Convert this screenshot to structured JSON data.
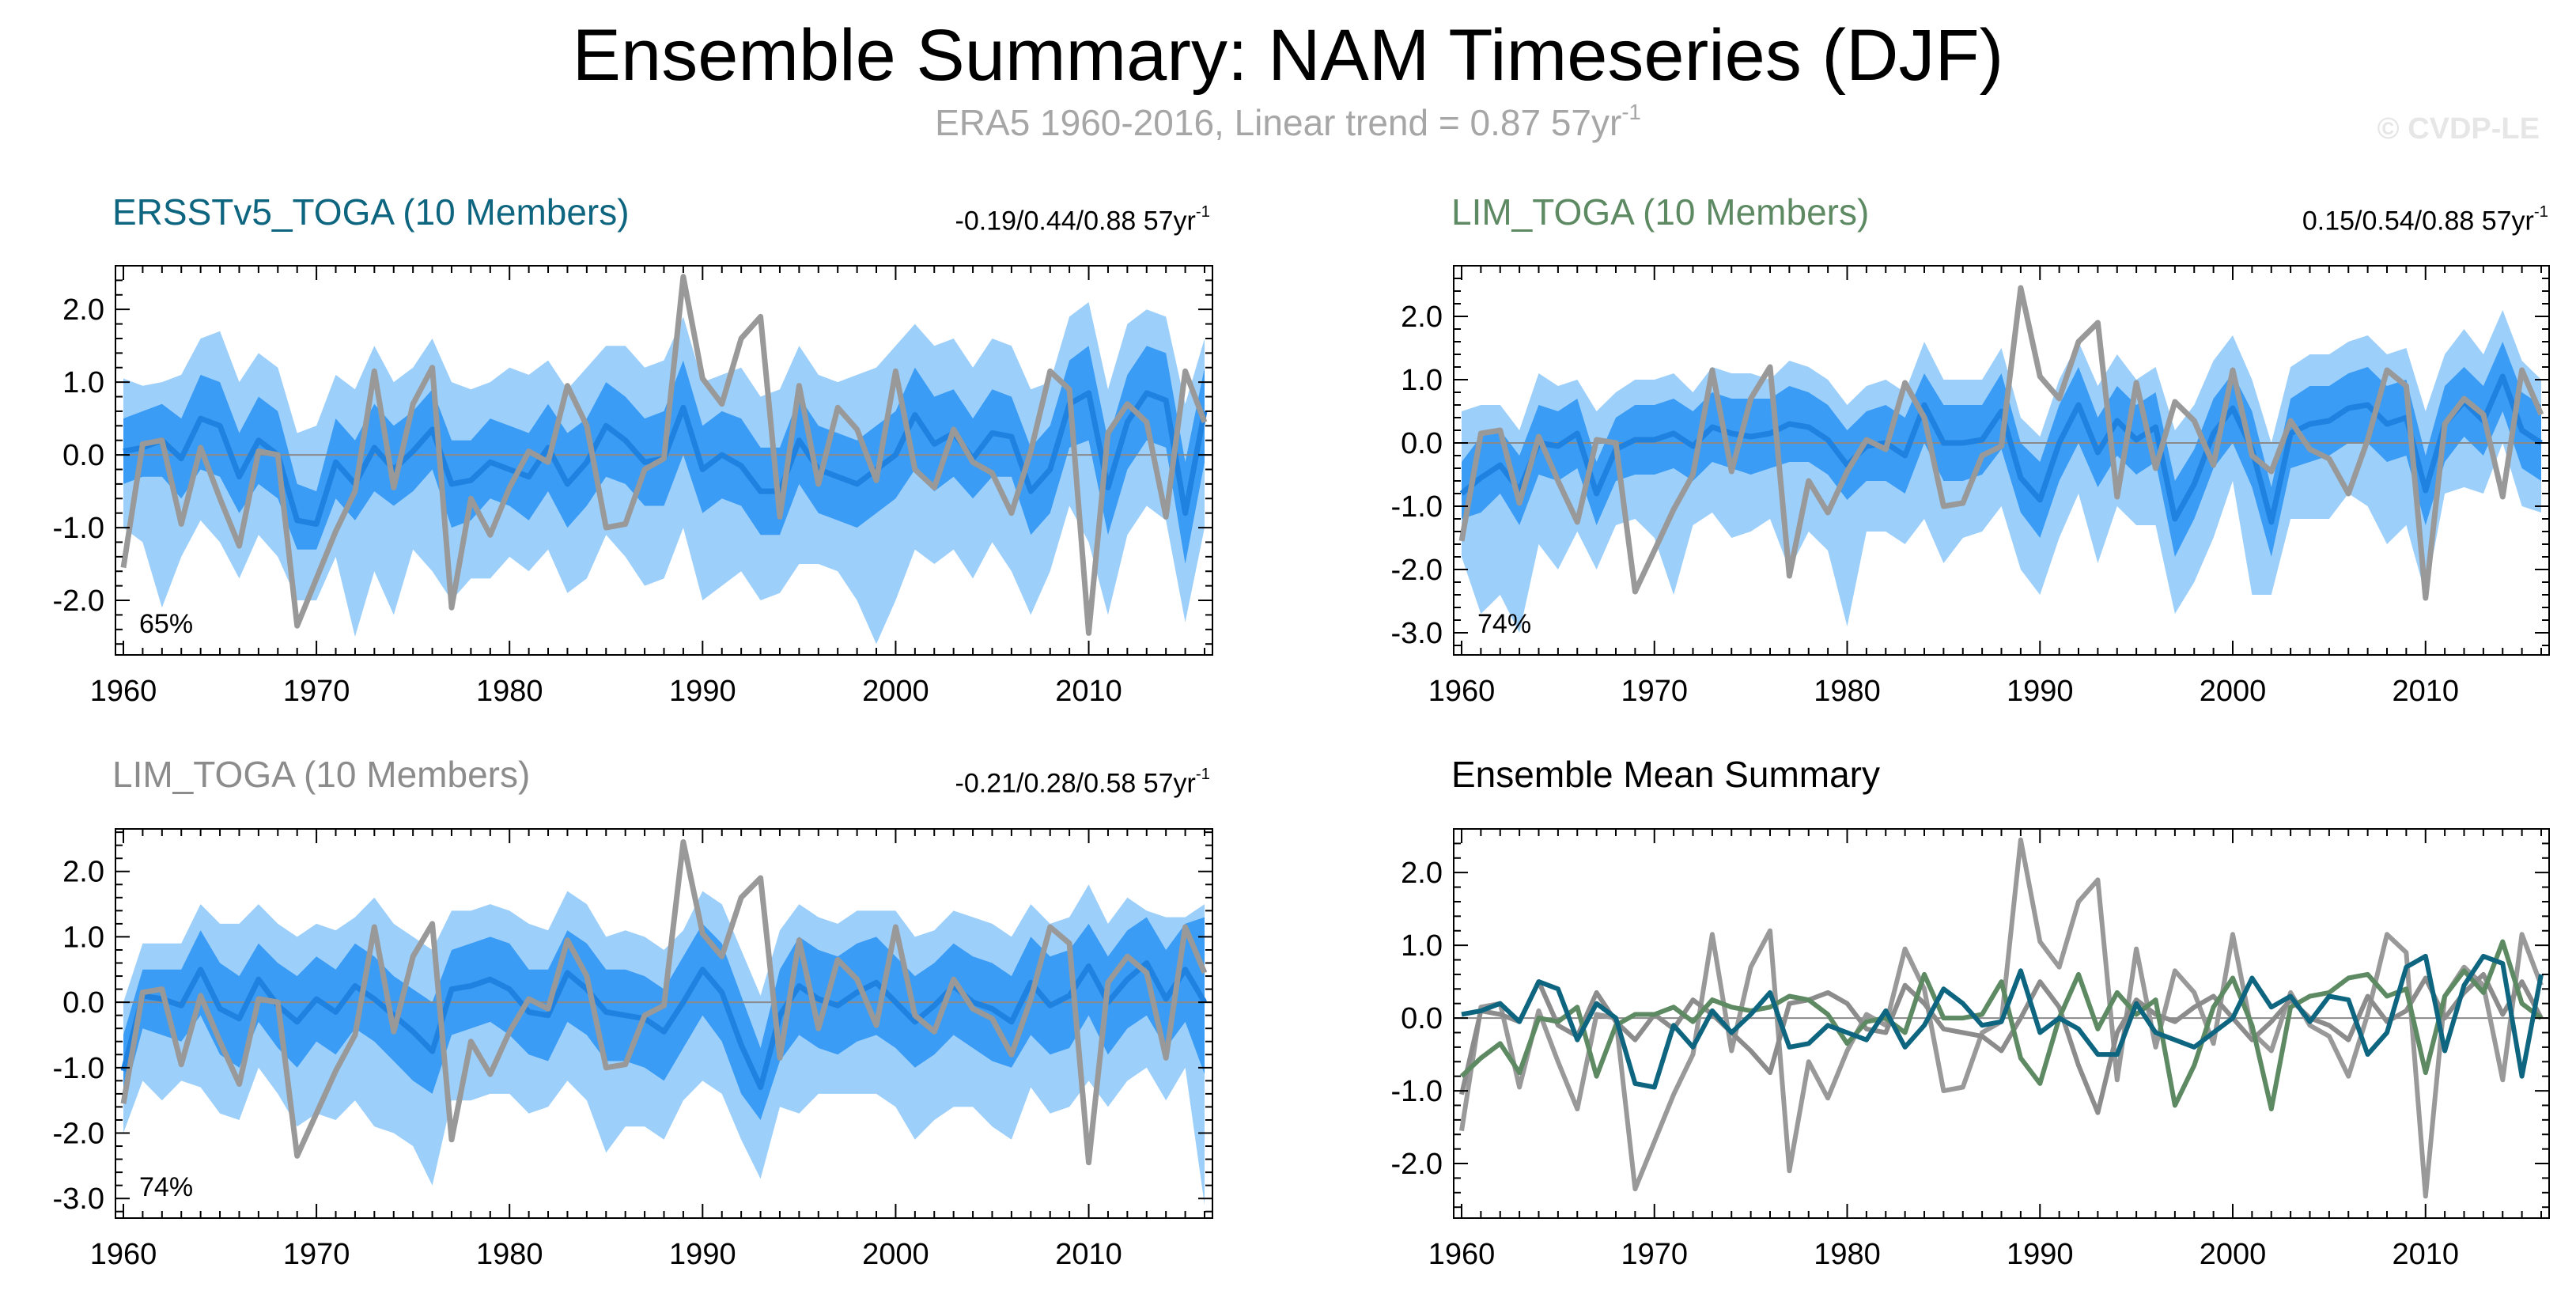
{
  "title": "Ensemble Summary: NAM Timeseries (DJF)",
  "subtitle": {
    "text": "ERA5 1960-2016, Linear trend = 0.87 57yr",
    "exponent": "-1"
  },
  "watermark": "© CVDP-LE",
  "colors": {
    "obs": "#999999",
    "band_outer": "#9dcffb",
    "band_inner": "#3a9cf4",
    "ens_mean": "#1f82e0",
    "ersst": "#0e6580",
    "lim": "#5d8a62",
    "lim_gray": "#8c8c8c",
    "axis": "#000000"
  },
  "panels": [
    {
      "title": "ERSSTv5_TOGA (10 Members)",
      "title_color": "#0e6580",
      "trend": "-0.19/0.44/0.88 57yr",
      "trend_exp": "-1",
      "percent": "65%"
    },
    {
      "title": "LIM_TOGA (10 Members)",
      "title_color": "#5d8a62",
      "trend": "0.15/0.54/0.88 57yr",
      "trend_exp": "-1",
      "percent": "74%"
    },
    {
      "title": "LIM_TOGA (10 Members)",
      "title_color": "#8c8c8c",
      "trend": "-0.21/0.28/0.58 57yr",
      "trend_exp": "-1",
      "percent": "74%"
    },
    {
      "title": "Ensemble Mean Summary",
      "title_color": "#000000",
      "trend": "",
      "trend_exp": "",
      "percent": ""
    }
  ],
  "chart_data": [
    {
      "type": "area",
      "title": "ERSSTv5_TOGA (10 Members)",
      "xlabel": "",
      "ylabel": "",
      "xlim": [
        1960,
        2016
      ],
      "ylim": [
        -2.75,
        2.6
      ],
      "xticks": [
        1960,
        1970,
        1980,
        1990,
        2000,
        2010
      ],
      "yticks": [
        -2,
        -1,
        0,
        1,
        2
      ],
      "ytick_labels": [
        "-2.0",
        "-1.0",
        "0.0",
        "1.0",
        "2.0"
      ],
      "series_ref": "ersst"
    },
    {
      "type": "area",
      "title": "LIM_TOGA (10 Members)",
      "xlabel": "",
      "ylabel": "",
      "xlim": [
        1960,
        2016
      ],
      "ylim": [
        -3.35,
        2.8
      ],
      "xticks": [
        1960,
        1970,
        1980,
        1990,
        2000,
        2010
      ],
      "yticks": [
        -3,
        -2,
        -1,
        0,
        1,
        2
      ],
      "ytick_labels": [
        "-3.0",
        "-2.0",
        "-1.0",
        "0.0",
        "1.0",
        "2.0"
      ],
      "series_ref": "lim"
    },
    {
      "type": "area",
      "title": "LIM_TOGA (10 Members)",
      "xlabel": "",
      "ylabel": "",
      "xlim": [
        1960,
        2016
      ],
      "ylim": [
        -3.3,
        2.65
      ],
      "xticks": [
        1960,
        1970,
        1980,
        1990,
        2000,
        2010
      ],
      "yticks": [
        -3,
        -2,
        -1,
        0,
        1,
        2
      ],
      "ytick_labels": [
        "-3.0",
        "-2.0",
        "-1.0",
        "0.0",
        "1.0",
        "2.0"
      ],
      "series_ref": "lim2"
    },
    {
      "type": "line",
      "title": "Ensemble Mean Summary",
      "xlabel": "",
      "ylabel": "",
      "xlim": [
        1960,
        2016
      ],
      "ylim": [
        -2.75,
        2.6
      ],
      "xticks": [
        1960,
        1970,
        1980,
        1990,
        2000,
        2010
      ],
      "yticks": [
        -2,
        -1,
        0,
        1,
        2
      ],
      "ytick_labels": [
        "-2.0",
        "-1.0",
        "0.0",
        "1.0",
        "2.0"
      ],
      "series": [
        {
          "name": "ERA5"
        },
        {
          "name": "ERSSTv5_TOGA"
        },
        {
          "name": "LIM_TOGA"
        },
        {
          "name": "LIM_TOGA"
        }
      ]
    }
  ],
  "series": {
    "years_start": 1960,
    "obs": [
      -1.55,
      0.15,
      0.2,
      -0.95,
      0.1,
      -0.6,
      -1.25,
      0.05,
      0.0,
      -2.35,
      -1.7,
      -1.05,
      -0.5,
      1.15,
      -0.45,
      0.7,
      1.2,
      -2.1,
      -0.6,
      -1.1,
      -0.45,
      0.05,
      -0.1,
      0.95,
      0.4,
      -1.0,
      -0.95,
      -0.2,
      -0.05,
      2.45,
      1.05,
      0.7,
      1.6,
      1.9,
      -0.85,
      0.95,
      -0.4,
      0.65,
      0.35,
      -0.35,
      1.15,
      -0.2,
      -0.45,
      0.35,
      -0.1,
      -0.25,
      -0.8,
      0.05,
      1.15,
      0.9,
      -2.45,
      0.3,
      0.7,
      0.45,
      -0.85,
      1.15,
      0.45
    ],
    "ersst": {
      "mean": [
        0.05,
        0.1,
        0.2,
        -0.05,
        0.5,
        0.4,
        -0.3,
        0.2,
        0.0,
        -0.9,
        -0.95,
        -0.1,
        -0.4,
        0.1,
        -0.2,
        0.05,
        0.35,
        -0.4,
        -0.35,
        -0.1,
        -0.2,
        -0.3,
        0.1,
        -0.4,
        -0.1,
        0.4,
        0.2,
        -0.1,
        -0.05,
        0.65,
        -0.2,
        0.0,
        -0.15,
        -0.5,
        -0.5,
        0.2,
        -0.2,
        -0.3,
        -0.4,
        -0.2,
        0.0,
        0.55,
        0.15,
        0.3,
        -0.05,
        0.3,
        0.25,
        -0.5,
        -0.2,
        0.7,
        0.85,
        -0.45,
        0.45,
        0.85,
        0.75,
        -0.8,
        0.6
      ],
      "inner_lo": [
        -0.4,
        -0.3,
        -0.3,
        -0.6,
        -0.2,
        -0.3,
        -0.8,
        -0.4,
        -0.6,
        -1.3,
        -1.3,
        -0.6,
        -0.9,
        -0.5,
        -0.7,
        -0.5,
        -0.2,
        -1.0,
        -0.9,
        -0.6,
        -0.7,
        -0.9,
        -0.5,
        -1.0,
        -0.7,
        -0.3,
        -0.4,
        -0.7,
        -0.7,
        0.0,
        -0.8,
        -0.6,
        -0.7,
        -1.1,
        -1.1,
        -0.4,
        -0.8,
        -0.9,
        -1.0,
        -0.8,
        -0.6,
        -0.2,
        -0.5,
        -0.3,
        -0.6,
        -0.3,
        -0.3,
        -1.1,
        -0.8,
        0.1,
        0.2,
        -1.1,
        -0.2,
        0.2,
        0.1,
        -1.5,
        -0.1
      ],
      "inner_hi": [
        0.5,
        0.6,
        0.7,
        0.5,
        1.1,
        1.0,
        0.3,
        0.8,
        0.6,
        -0.4,
        -0.5,
        0.5,
        0.2,
        0.7,
        0.4,
        0.6,
        0.9,
        0.2,
        0.2,
        0.5,
        0.4,
        0.3,
        0.7,
        0.3,
        0.5,
        1.0,
        0.8,
        0.5,
        0.6,
        1.3,
        0.4,
        0.6,
        0.5,
        0.1,
        0.1,
        0.8,
        0.4,
        0.3,
        0.2,
        0.4,
        0.6,
        1.2,
        0.8,
        0.9,
        0.5,
        0.9,
        0.8,
        0.1,
        0.4,
        1.3,
        1.5,
        0.2,
        1.1,
        1.5,
        1.4,
        -0.1,
        1.2
      ],
      "outer_lo": [
        -1.0,
        -1.2,
        -2.1,
        -1.4,
        -0.9,
        -1.2,
        -1.7,
        -1.1,
        -1.4,
        -2.0,
        -2.0,
        -1.4,
        -2.5,
        -1.6,
        -2.2,
        -1.3,
        -1.6,
        -2.0,
        -1.7,
        -1.7,
        -1.4,
        -1.6,
        -1.3,
        -1.9,
        -1.7,
        -1.1,
        -1.4,
        -1.8,
        -1.7,
        -1.0,
        -2.0,
        -1.8,
        -1.6,
        -2.0,
        -1.9,
        -1.5,
        -1.5,
        -1.6,
        -2.0,
        -2.6,
        -2.0,
        -1.3,
        -1.5,
        -1.3,
        -1.7,
        -1.2,
        -1.6,
        -2.2,
        -1.6,
        -0.7,
        -1.2,
        -2.2,
        -1.1,
        -0.7,
        -0.9,
        -2.3,
        -1.0
      ],
      "outer_hi": [
        1.05,
        0.95,
        1.0,
        1.1,
        1.6,
        1.7,
        1.0,
        1.4,
        1.2,
        0.3,
        0.4,
        1.1,
        0.9,
        1.5,
        1.0,
        1.2,
        1.6,
        1.0,
        0.9,
        1.0,
        1.2,
        1.1,
        1.3,
        0.9,
        1.2,
        1.5,
        1.5,
        1.2,
        1.3,
        1.9,
        1.0,
        1.1,
        1.2,
        0.8,
        0.9,
        1.5,
        1.1,
        1.0,
        1.1,
        1.2,
        1.5,
        1.8,
        1.5,
        1.6,
        1.2,
        1.6,
        1.5,
        0.9,
        1.0,
        1.9,
        2.1,
        0.9,
        1.8,
        2.0,
        1.9,
        0.7,
        1.6
      ]
    },
    "lim": {
      "mean": [
        -0.8,
        -0.55,
        -0.35,
        -0.75,
        0.0,
        -0.05,
        0.15,
        -0.8,
        -0.1,
        0.05,
        0.05,
        0.15,
        -0.05,
        0.25,
        0.15,
        0.1,
        0.15,
        0.3,
        0.25,
        0.05,
        -0.35,
        -0.05,
        0.0,
        -0.2,
        0.6,
        0.0,
        0.0,
        0.05,
        0.5,
        -0.55,
        -0.9,
        0.0,
        0.6,
        -0.15,
        0.35,
        0.05,
        0.25,
        -1.2,
        -0.65,
        0.15,
        0.55,
        -0.1,
        -1.25,
        0.15,
        0.3,
        0.35,
        0.55,
        0.6,
        0.3,
        0.4,
        -0.75,
        0.3,
        0.65,
        0.35,
        1.05,
        0.2,
        0.0
      ],
      "inner_lo": [
        -1.2,
        -1.1,
        -0.8,
        -1.3,
        -0.5,
        -0.6,
        -0.4,
        -1.3,
        -0.6,
        -0.5,
        -0.5,
        -0.4,
        -0.6,
        -0.3,
        -0.4,
        -0.5,
        -0.4,
        -0.3,
        -0.3,
        -0.5,
        -0.9,
        -0.6,
        -0.6,
        -0.8,
        0.0,
        -0.6,
        -0.6,
        -0.5,
        -0.1,
        -1.1,
        -1.5,
        -0.6,
        0.0,
        -0.7,
        -0.2,
        -0.5,
        -0.3,
        -1.8,
        -1.2,
        -0.4,
        0.0,
        -0.7,
        -1.8,
        -0.4,
        -0.3,
        -0.2,
        0.0,
        0.0,
        -0.3,
        -0.2,
        -1.3,
        -0.3,
        0.1,
        -0.2,
        0.5,
        -0.4,
        -0.6
      ],
      "inner_hi": [
        -0.3,
        0.1,
        0.2,
        -0.2,
        0.6,
        0.5,
        0.7,
        -0.3,
        0.4,
        0.6,
        0.6,
        0.7,
        0.5,
        0.8,
        0.7,
        0.7,
        0.7,
        0.9,
        0.8,
        0.6,
        0.2,
        0.5,
        0.6,
        0.4,
        1.1,
        0.6,
        0.6,
        0.6,
        1.1,
        0.0,
        -0.3,
        0.6,
        1.2,
        0.4,
        0.9,
        0.6,
        0.8,
        -0.6,
        -0.1,
        0.7,
        1.1,
        0.5,
        -0.7,
        0.7,
        0.9,
        0.9,
        1.1,
        1.2,
        0.9,
        1.0,
        -0.2,
        0.9,
        1.2,
        0.9,
        1.6,
        0.8,
        0.6
      ],
      "outer_lo": [
        -1.8,
        -2.7,
        -2.4,
        -3.0,
        -1.6,
        -2.0,
        -1.4,
        -2.0,
        -1.3,
        -1.2,
        -1.5,
        -2.4,
        -1.3,
        -1.1,
        -1.5,
        -1.4,
        -1.2,
        -2.0,
        -1.4,
        -1.7,
        -2.9,
        -1.4,
        -1.4,
        -1.6,
        -1.2,
        -1.9,
        -1.5,
        -1.4,
        -1.0,
        -2.0,
        -2.4,
        -1.5,
        -0.8,
        -1.9,
        -1.0,
        -1.3,
        -1.3,
        -2.7,
        -2.2,
        -1.5,
        -0.6,
        -2.4,
        -2.4,
        -1.2,
        -1.2,
        -1.2,
        -0.8,
        -1.0,
        -1.6,
        -1.3,
        -2.4,
        -0.8,
        -0.7,
        -0.8,
        0.0,
        -1.0,
        -1.1
      ],
      "outer_hi": [
        0.5,
        0.6,
        0.6,
        0.2,
        1.1,
        0.9,
        1.0,
        0.5,
        0.8,
        1.0,
        1.0,
        1.1,
        0.8,
        1.2,
        1.1,
        1.1,
        1.0,
        1.3,
        1.2,
        1.0,
        0.6,
        0.9,
        1.0,
        0.8,
        1.6,
        1.0,
        1.0,
        1.0,
        1.5,
        0.4,
        0.1,
        1.0,
        1.6,
        0.9,
        1.4,
        1.0,
        1.2,
        0.2,
        0.6,
        1.3,
        1.7,
        1.0,
        0.0,
        1.2,
        1.4,
        1.4,
        1.6,
        1.7,
        1.4,
        1.5,
        0.5,
        1.4,
        1.8,
        1.4,
        2.1,
        1.3,
        1.0
      ]
    },
    "lim2": {
      "mean": [
        -1.05,
        0.1,
        0.05,
        -0.05,
        0.5,
        -0.1,
        -0.25,
        0.35,
        -0.05,
        -0.3,
        0.05,
        -0.15,
        0.25,
        0.05,
        -0.2,
        -0.45,
        -0.75,
        0.2,
        0.25,
        0.35,
        0.2,
        -0.15,
        -0.2,
        0.45,
        0.2,
        -0.15,
        -0.2,
        -0.25,
        -0.45,
        0.0,
        0.5,
        0.15,
        -0.65,
        -1.3,
        -0.2,
        0.25,
        0.05,
        -0.05,
        0.15,
        0.3,
        0.0,
        -0.3,
        -0.05,
        0.25,
        0.0,
        -0.1,
        -0.3,
        0.3,
        -0.05,
        0.1,
        0.55,
        0.0,
        0.35,
        0.6,
        0.05,
        0.5,
        0.0
      ],
      "inner_lo": [
        -1.5,
        -0.4,
        -0.5,
        -0.6,
        -0.2,
        -0.8,
        -1.0,
        -0.3,
        -0.7,
        -1.0,
        -0.6,
        -0.8,
        -0.4,
        -0.6,
        -0.9,
        -1.2,
        -1.4,
        -0.5,
        -0.4,
        -0.3,
        -0.5,
        -0.8,
        -0.9,
        -0.3,
        -0.5,
        -0.9,
        -0.9,
        -1.0,
        -1.2,
        -0.7,
        -0.2,
        -0.6,
        -1.4,
        -1.8,
        -0.9,
        -0.5,
        -0.7,
        -0.8,
        -0.6,
        -0.5,
        -0.7,
        -1.0,
        -0.8,
        -0.5,
        -0.7,
        -0.9,
        -1.0,
        -0.5,
        -0.8,
        -0.7,
        -0.2,
        -0.8,
        -0.4,
        -0.2,
        -0.7,
        -0.3,
        -1.1
      ],
      "inner_hi": [
        -0.5,
        0.5,
        0.5,
        0.5,
        1.1,
        0.6,
        0.4,
        0.9,
        0.6,
        0.4,
        0.7,
        0.5,
        0.9,
        0.7,
        0.4,
        0.2,
        0.0,
        0.8,
        0.9,
        1.0,
        0.9,
        0.5,
        0.5,
        1.1,
        0.9,
        0.5,
        0.5,
        0.4,
        0.2,
        0.7,
        1.2,
        0.9,
        0.1,
        -0.7,
        0.5,
        1.0,
        0.8,
        0.7,
        0.9,
        1.0,
        0.7,
        0.4,
        0.6,
        0.9,
        0.7,
        0.6,
        0.4,
        1.0,
        0.7,
        0.8,
        1.2,
        0.7,
        1.1,
        1.3,
        0.8,
        1.2,
        1.3
      ],
      "outer_lo": [
        -2.0,
        -1.2,
        -1.5,
        -1.2,
        -1.3,
        -1.7,
        -1.8,
        -1.0,
        -1.4,
        -1.9,
        -1.7,
        -1.8,
        -1.5,
        -1.9,
        -2.0,
        -2.2,
        -2.8,
        -1.5,
        -1.5,
        -1.4,
        -1.4,
        -1.7,
        -1.6,
        -1.2,
        -1.5,
        -2.3,
        -1.9,
        -1.9,
        -2.1,
        -1.5,
        -1.2,
        -1.4,
        -2.1,
        -2.7,
        -1.6,
        -1.7,
        -1.4,
        -1.4,
        -1.4,
        -1.4,
        -1.6,
        -2.1,
        -1.8,
        -1.6,
        -1.6,
        -1.9,
        -2.1,
        -1.3,
        -1.7,
        -1.6,
        -1.2,
        -1.6,
        -1.2,
        -1.0,
        -1.5,
        -1.0,
        -3.1
      ],
      "outer_hi": [
        0.0,
        0.9,
        0.9,
        0.9,
        1.5,
        1.2,
        1.2,
        1.5,
        1.2,
        1.0,
        1.2,
        1.1,
        1.3,
        1.6,
        1.2,
        1.0,
        0.8,
        1.4,
        1.4,
        1.5,
        1.4,
        1.2,
        1.1,
        1.7,
        1.5,
        1.0,
        1.1,
        1.0,
        0.8,
        1.1,
        1.7,
        1.5,
        0.8,
        0.1,
        1.1,
        1.5,
        1.3,
        1.2,
        1.4,
        1.4,
        1.4,
        1.0,
        1.1,
        1.4,
        1.3,
        1.2,
        1.0,
        1.5,
        1.2,
        1.3,
        1.8,
        1.2,
        1.6,
        1.4,
        1.3,
        1.3,
        1.5
      ]
    }
  }
}
